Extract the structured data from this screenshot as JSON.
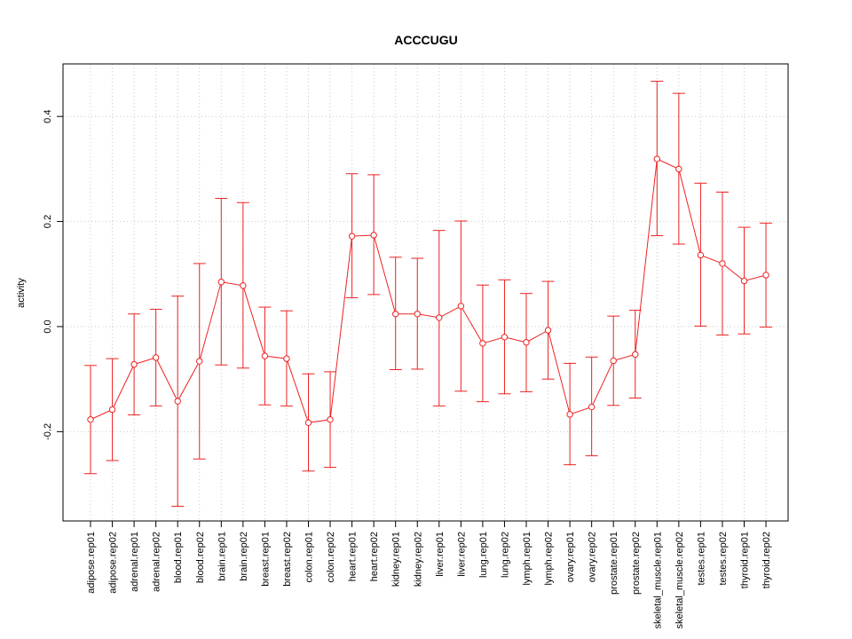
{
  "chart_data": {
    "type": "line",
    "title": "ACCCUGU",
    "xlabel": "",
    "ylabel": "activity",
    "ylim": [
      -0.37,
      0.5
    ],
    "yticks": [
      -0.2,
      0.0,
      0.2,
      0.4
    ],
    "ytick_labels": [
      "-0.2",
      "0.0",
      "0.2",
      "0.4"
    ],
    "grid": true,
    "colors": {
      "series": "#ee2222",
      "grid": "#c8c8c8",
      "axis": "#000000"
    },
    "categories": [
      "adipose.rep01",
      "adipose.rep02",
      "adrenal.rep01",
      "adrenal.rep02",
      "blood.rep01",
      "blood.rep02",
      "brain.rep01",
      "brain.rep02",
      "breast.rep01",
      "breast.rep02",
      "colon.rep01",
      "colon.rep02",
      "heart.rep01",
      "heart.rep02",
      "kidney.rep01",
      "kidney.rep02",
      "liver.rep01",
      "liver.rep02",
      "lung.rep01",
      "lung.rep02",
      "lymph.rep01",
      "lymph.rep02",
      "ovary.rep01",
      "ovary.rep02",
      "prostate.rep01",
      "prostate.rep02",
      "skeletal_muscle.rep01",
      "skeletal_muscle.rep02",
      "testes.rep01",
      "testes.rep02",
      "thyroid.rep01",
      "thyroid.rep02"
    ],
    "series": [
      {
        "name": "activity",
        "values": [
          -0.177,
          -0.158,
          -0.072,
          -0.059,
          -0.142,
          -0.066,
          0.085,
          0.078,
          -0.056,
          -0.061,
          -0.183,
          -0.177,
          0.172,
          0.174,
          0.024,
          0.024,
          0.017,
          0.039,
          -0.032,
          -0.02,
          -0.03,
          -0.007,
          -0.167,
          -0.153,
          -0.065,
          -0.053,
          0.319,
          0.3,
          0.136,
          0.12,
          0.087,
          0.098
        ],
        "upper": [
          -0.074,
          -0.061,
          0.024,
          0.033,
          0.058,
          0.12,
          0.244,
          0.236,
          0.037,
          0.03,
          -0.09,
          -0.086,
          0.291,
          0.289,
          0.132,
          0.13,
          0.183,
          0.201,
          0.079,
          0.089,
          0.063,
          0.086,
          -0.07,
          -0.058,
          0.02,
          0.031,
          0.467,
          0.444,
          0.273,
          0.256,
          0.189,
          0.197
        ],
        "lower": [
          -0.28,
          -0.255,
          -0.168,
          -0.151,
          -0.342,
          -0.252,
          -0.073,
          -0.079,
          -0.149,
          -0.151,
          -0.275,
          -0.268,
          0.055,
          0.061,
          -0.082,
          -0.081,
          -0.151,
          -0.123,
          -0.143,
          -0.128,
          -0.124,
          -0.1,
          -0.263,
          -0.246,
          -0.15,
          -0.136,
          0.173,
          0.157,
          0.001,
          -0.016,
          -0.014,
          -0.001
        ]
      }
    ]
  }
}
